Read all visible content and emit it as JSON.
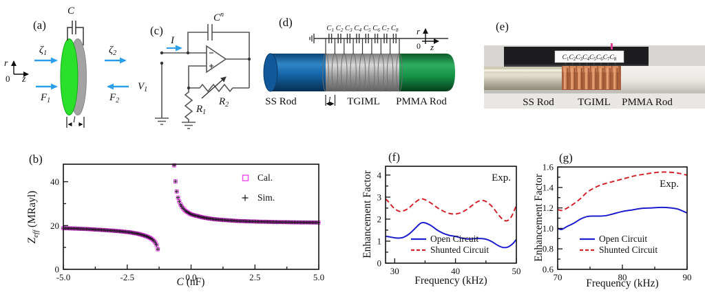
{
  "panels": {
    "a": {
      "tag": "(a)",
      "cap": "C",
      "axis_r": "r",
      "axis_zero": "0",
      "axis_z": "z",
      "zeta1": {
        "base": "ζ",
        "sub": "1"
      },
      "zeta2": {
        "base": "ζ",
        "sub": "2"
      },
      "force1": {
        "base": "F",
        "sub": "1"
      },
      "force2": {
        "base": "F",
        "sub": "2"
      },
      "thickness": "l"
    },
    "c": {
      "tag": "(c)",
      "cap": {
        "base": "C",
        "sup": "n"
      },
      "current": "I",
      "v1": {
        "base": "V",
        "sub": "1"
      },
      "r1": {
        "base": "R",
        "sub": "1"
      },
      "r2": {
        "base": "R",
        "sub": "2"
      }
    },
    "d": {
      "tag": "(d)",
      "cap_base": "C",
      "cap_subs": [
        "1",
        "2",
        "3",
        "4",
        "5",
        "6",
        "7",
        "8"
      ],
      "axis_r": "r",
      "axis_zero": "0",
      "axis_z": "z",
      "thickness": "l",
      "label_ss": "SS Rod",
      "label_tgiml": "TGIML",
      "label_pmma": "PMMA Rod"
    },
    "e": {
      "tag": "(e)",
      "cap_base": "C",
      "cap_subs": [
        "1",
        "2",
        "3",
        "4",
        "5",
        "6",
        "7",
        "8"
      ],
      "label_ss": "SS Rod",
      "label_tgiml": "TGIML",
      "label_pmma": "PMMA Rod"
    }
  },
  "colors": {
    "blue_arrow": "#2d9ee8",
    "ss_rod_blue": "#13589b",
    "tgiml_gray": "#a9a9a9",
    "pmma_green": "#1a9a4e",
    "cal_marker": "#ee3cee",
    "sim_marker": "#141414",
    "open_circuit_blue": "#1c1ccd",
    "shunted_circuit_red": "#d3222b"
  },
  "chart_data": [
    {
      "id": "b",
      "tag": "(b)",
      "type": "scatter",
      "xlabel_base": "C",
      "xlabel_rest": " (nF)",
      "ylabel_base": "Z",
      "ylabel_sub": "eff",
      "ylabel_rest": " (MRayl)",
      "xlim": [
        -5,
        5
      ],
      "ylim": [
        0,
        48
      ],
      "xticks": [
        -5,
        -2.5,
        0,
        2.5,
        5
      ],
      "xtick_labels": [
        "-5.0",
        "-2.5",
        "0.0",
        "2.5",
        "5.0"
      ],
      "xminor": [
        -3.75,
        -1.25,
        1.25,
        3.75
      ],
      "yticks": [
        0,
        20,
        40
      ],
      "ytick_labels": [
        "0",
        "20",
        "40"
      ],
      "yminor": [
        10,
        30
      ],
      "grid": false,
      "legend_position": "inside top-right",
      "annotation": "",
      "marker_step": 0.05,
      "series": [
        {
          "name": "Cal.",
          "marker": "square",
          "color": "#ee3cee"
        },
        {
          "name": "Sim.",
          "marker": "plus",
          "color": "#141414"
        }
      ],
      "branches": [
        {
          "x": [
            -5,
            -4.5,
            -4,
            -3.5,
            -3,
            -2.7,
            -2.4,
            -2.1,
            -1.9,
            -1.7,
            -1.55,
            -1.45,
            -1.38,
            -1.33,
            -1.3,
            -1.28,
            -1.26
          ],
          "y": [
            18.8,
            18.6,
            18.35,
            18.0,
            17.6,
            17.3,
            16.9,
            16.3,
            15.7,
            14.9,
            14.0,
            13.0,
            11.9,
            10.6,
            9.2,
            7.5,
            5.2
          ]
        },
        {
          "x": [
            -0.66,
            -0.64,
            -0.62,
            -0.6,
            -0.575,
            -0.55,
            -0.52,
            -0.49,
            -0.45,
            -0.4,
            -0.34,
            -0.27,
            -0.2,
            -0.1,
            0,
            0.15,
            0.35,
            0.6,
            0.9,
            1.3,
            1.8,
            2.4,
            3.1,
            3.9,
            4.6,
            5
          ],
          "y": [
            47.5,
            44.2,
            41.5,
            38.8,
            36.6,
            34.8,
            33.2,
            31.9,
            30.6,
            29.3,
            28.2,
            27.3,
            26.5,
            25.8,
            25.1,
            24.6,
            24.0,
            23.4,
            22.9,
            22.5,
            22.1,
            21.85,
            21.65,
            21.5,
            21.4,
            21.35
          ]
        }
      ]
    },
    {
      "id": "f",
      "tag": "(f)",
      "type": "line",
      "xlabel": "Frequency (kHz)",
      "ylabel": "Enhancement Factor",
      "xlim": [
        28.5,
        50
      ],
      "ylim": [
        0,
        4.4
      ],
      "xticks": [
        30,
        40,
        50
      ],
      "xtick_labels": [
        "30",
        "40",
        "50"
      ],
      "xminor": [
        35,
        45
      ],
      "yticks": [
        0,
        1,
        2,
        3,
        4
      ],
      "ytick_labels": [
        "0",
        "1",
        "2",
        "3",
        "4"
      ],
      "yminor": [
        0.5,
        1.5,
        2.5,
        3.5
      ],
      "grid": false,
      "legend_position": "inside bottom-left",
      "annotation": "Exp.",
      "series": [
        {
          "name": "Open Circuit",
          "color": "#1c1ccd",
          "dash": "",
          "x": [
            28.5,
            29,
            30,
            30.7,
            31.5,
            32.5,
            33.5,
            34.3,
            35,
            36,
            37,
            38,
            39,
            40,
            41,
            42,
            43,
            44,
            45,
            46,
            47,
            47.8,
            48.6,
            49.4,
            50
          ],
          "y": [
            1.22,
            1.2,
            1.15,
            1.14,
            1.18,
            1.35,
            1.62,
            1.82,
            1.83,
            1.7,
            1.5,
            1.35,
            1.26,
            1.21,
            1.14,
            1.1,
            1.11,
            1.12,
            1.09,
            0.97,
            0.8,
            0.71,
            0.73,
            0.88,
            1.08
          ]
        },
        {
          "name": "Shunted Circuit",
          "color": "#d3222b",
          "dash": "7 4",
          "x": [
            28.5,
            29,
            29.8,
            30.7,
            31.5,
            32.3,
            33.2,
            34.2,
            35,
            36,
            37,
            38,
            39,
            39.8,
            40.6,
            41.5,
            42.4,
            43.3,
            44.2,
            45,
            46,
            47,
            47.8,
            48.5,
            49.2,
            50
          ],
          "y": [
            2.92,
            2.78,
            2.52,
            2.36,
            2.38,
            2.5,
            2.72,
            2.91,
            2.88,
            2.72,
            2.52,
            2.36,
            2.26,
            2.23,
            2.27,
            2.38,
            2.55,
            2.74,
            2.85,
            2.8,
            2.57,
            2.22,
            1.98,
            1.93,
            2.12,
            2.62
          ]
        }
      ]
    },
    {
      "id": "g",
      "tag": "(g)",
      "type": "line",
      "xlabel": "Frequency (kHz)",
      "ylabel": "Enhancement Factor",
      "xlim": [
        70,
        90
      ],
      "ylim": [
        0.6,
        1.6
      ],
      "xticks": [
        70,
        80,
        90
      ],
      "xtick_labels": [
        "70",
        "80",
        "90"
      ],
      "xminor": [
        75,
        85
      ],
      "yticks": [
        0.6,
        0.8,
        1.0,
        1.2,
        1.4,
        1.6
      ],
      "ytick_labels": [
        "0.6",
        "0.8",
        "1.0",
        "1.2",
        "1.4",
        "1.6"
      ],
      "yminor": [
        0.7,
        0.9,
        1.1,
        1.3,
        1.5
      ],
      "grid": false,
      "legend_position": "inside bottom-left",
      "annotation": "Exp.",
      "series": [
        {
          "name": "Open Circuit",
          "color": "#1c1ccd",
          "dash": "",
          "x": [
            70,
            70.6,
            71.5,
            72.5,
            73.5,
            74.5,
            75.5,
            76.5,
            77.5,
            78.5,
            80,
            81.5,
            83,
            84.5,
            86,
            87.5,
            88.5,
            89.3,
            90
          ],
          "y": [
            1.0,
            0.99,
            1.02,
            1.05,
            1.09,
            1.115,
            1.12,
            1.12,
            1.125,
            1.14,
            1.165,
            1.18,
            1.195,
            1.2,
            1.205,
            1.2,
            1.19,
            1.17,
            1.15
          ]
        },
        {
          "name": "Shunted Circuit",
          "color": "#d3222b",
          "dash": "7 4",
          "x": [
            70,
            70.6,
            71.5,
            72.5,
            73.5,
            74.5,
            75.5,
            76.5,
            77.5,
            79,
            80.5,
            82,
            83.5,
            85,
            86.5,
            88,
            89,
            90
          ],
          "y": [
            1.185,
            1.175,
            1.2,
            1.24,
            1.29,
            1.35,
            1.39,
            1.42,
            1.44,
            1.465,
            1.49,
            1.515,
            1.53,
            1.545,
            1.55,
            1.545,
            1.535,
            1.52
          ]
        }
      ]
    }
  ]
}
